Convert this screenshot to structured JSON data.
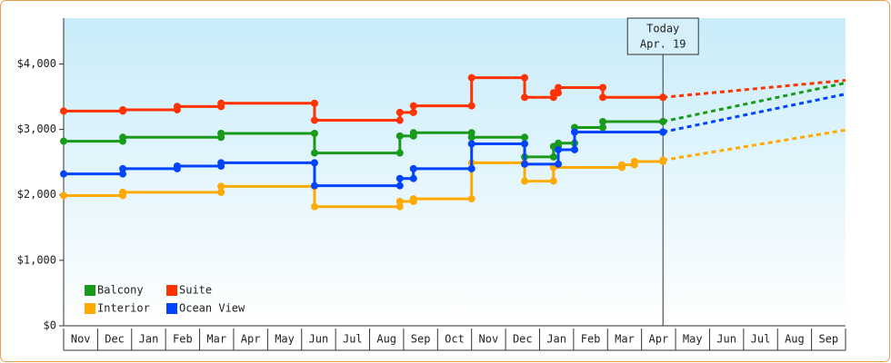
{
  "chart_data": {
    "type": "step-line",
    "xlim": [
      0,
      23
    ],
    "xticks": [
      {
        "value": 0,
        "label": "Nov"
      },
      {
        "value": 1,
        "label": "Dec"
      },
      {
        "value": 2,
        "label": "Jan"
      },
      {
        "value": 3,
        "label": "Feb"
      },
      {
        "value": 4,
        "label": "Mar"
      },
      {
        "value": 5,
        "label": "Apr"
      },
      {
        "value": 6,
        "label": "May"
      },
      {
        "value": 7,
        "label": "Jun"
      },
      {
        "value": 8,
        "label": "Jul"
      },
      {
        "value": 9,
        "label": "Aug"
      },
      {
        "value": 10,
        "label": "Sep"
      },
      {
        "value": 11,
        "label": "Oct"
      },
      {
        "value": 12,
        "label": "Nov"
      },
      {
        "value": 13,
        "label": "Dec"
      },
      {
        "value": 14,
        "label": "Jan"
      },
      {
        "value": 15,
        "label": "Feb"
      },
      {
        "value": 16,
        "label": "Mar"
      },
      {
        "value": 17,
        "label": "Apr"
      },
      {
        "value": 18,
        "label": "May"
      },
      {
        "value": 19,
        "label": "Jun"
      },
      {
        "value": 20,
        "label": "Jul"
      },
      {
        "value": 21,
        "label": "Aug"
      },
      {
        "value": 22,
        "label": "Sep"
      }
    ],
    "ylim": [
      0,
      4700
    ],
    "yticks": [
      {
        "value": 0,
        "label": "$0"
      },
      {
        "value": 1000,
        "label": "$1,000"
      },
      {
        "value": 2000,
        "label": "$2,000"
      },
      {
        "value": 3000,
        "label": "$3,000"
      },
      {
        "value": 4000,
        "label": "$4,000"
      }
    ],
    "annotation": {
      "text": [
        "Today",
        "Apr. 19"
      ],
      "x": 17.63
    },
    "projection_end": 23,
    "legend_position": "lower-left",
    "series": [
      {
        "name": "Balcony",
        "color": "#1a9a1a",
        "x": [
          0,
          1.74,
          4.63,
          7.38,
          9.89,
          10.29,
          12.0,
          13.56,
          14.41,
          14.55,
          15.03,
          15.86,
          17.63
        ],
        "values": [
          2820,
          2880,
          2940,
          2640,
          2900,
          2950,
          2880,
          2580,
          2740,
          2790,
          3030,
          3120,
          3120
        ],
        "projection": 3710
      },
      {
        "name": "Suite",
        "color": "#ff3300",
        "x": [
          0,
          1.74,
          3.34,
          4.63,
          7.38,
          9.89,
          10.29,
          12.0,
          13.56,
          14.41,
          14.55,
          15.86,
          17.63
        ],
        "values": [
          3280,
          3300,
          3350,
          3400,
          3140,
          3260,
          3360,
          3790,
          3490,
          3560,
          3640,
          3490,
          3490
        ],
        "projection": 3750
      },
      {
        "name": "Interior",
        "color": "#ffaa00",
        "x": [
          0,
          1.74,
          4.63,
          7.38,
          9.89,
          10.29,
          12.0,
          13.56,
          14.41,
          16.42,
          16.79,
          17.63
        ],
        "values": [
          1990,
          2040,
          2130,
          1820,
          1900,
          1940,
          2490,
          2210,
          2420,
          2460,
          2510,
          2530
        ],
        "projection": 2990
      },
      {
        "name": "Ocean View",
        "color": "#0044ff",
        "x": [
          0,
          1.74,
          3.34,
          4.63,
          7.38,
          9.89,
          10.29,
          12.0,
          13.56,
          14.55,
          15.03,
          17.63
        ],
        "values": [
          2320,
          2400,
          2440,
          2490,
          2140,
          2250,
          2400,
          2780,
          2470,
          2690,
          2960,
          2960
        ],
        "projection": 3540
      }
    ]
  }
}
